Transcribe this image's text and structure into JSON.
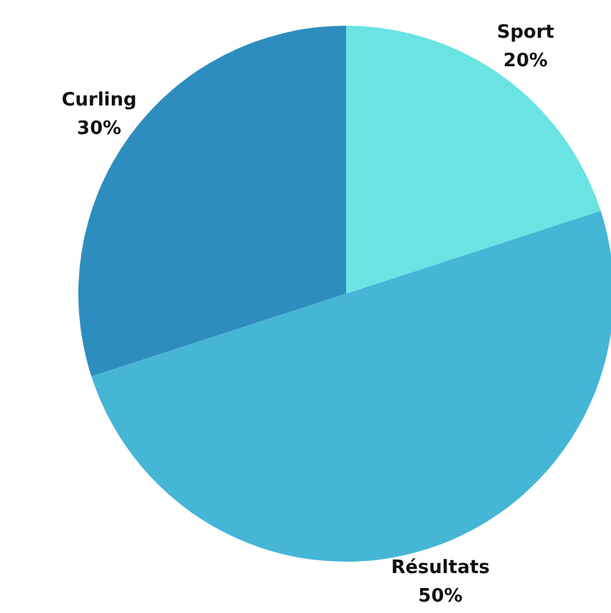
{
  "chart_data": {
    "type": "pie",
    "categories": [
      "Sport",
      "Résultats",
      "Curling"
    ],
    "values": [
      20,
      50,
      30
    ],
    "colors": [
      "#6ae3e3",
      "#45b6d6",
      "#2e8dbf"
    ],
    "value_labels": [
      "20%",
      "50%",
      "30%"
    ]
  }
}
